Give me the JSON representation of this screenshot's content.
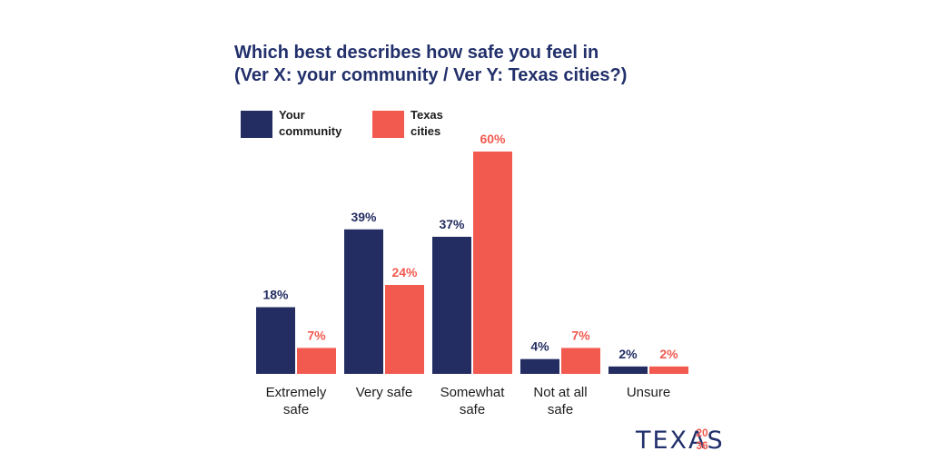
{
  "title_line1": "Which best describes how safe you feel in",
  "title_line2": "(Ver X: your community / Ver Y: Texas cities?)",
  "colors": {
    "navy": "#232d62",
    "coral": "#f25a50",
    "title": "#22306b"
  },
  "logo": {
    "word": "TEXAS",
    "year_top": "20",
    "year_bottom": "36"
  },
  "chart_data": {
    "type": "bar",
    "title": "Which best describes how safe you feel in (Ver X: your community / Ver Y: Texas cities?)",
    "categories": [
      [
        "Extremely",
        "safe"
      ],
      [
        "Very safe"
      ],
      [
        "Somewhat",
        "safe"
      ],
      [
        "Not at all",
        "safe"
      ],
      [
        "Unsure"
      ]
    ],
    "series": [
      {
        "name": "Your community",
        "name_lines": [
          "Your",
          "community"
        ],
        "color": "#232d62",
        "values": [
          18,
          39,
          37,
          4,
          2
        ],
        "labels": [
          "18%",
          "39%",
          "37%",
          "4%",
          "2%"
        ]
      },
      {
        "name": "Texas cities",
        "name_lines": [
          "Texas",
          "cities"
        ],
        "color": "#f25a50",
        "values": [
          7,
          24,
          60,
          7,
          2
        ],
        "labels": [
          "7%",
          "24%",
          "60%",
          "7%",
          "2%"
        ]
      }
    ],
    "unit": "%",
    "ylim": [
      0,
      60
    ],
    "grid": false,
    "legend": "top-left"
  }
}
